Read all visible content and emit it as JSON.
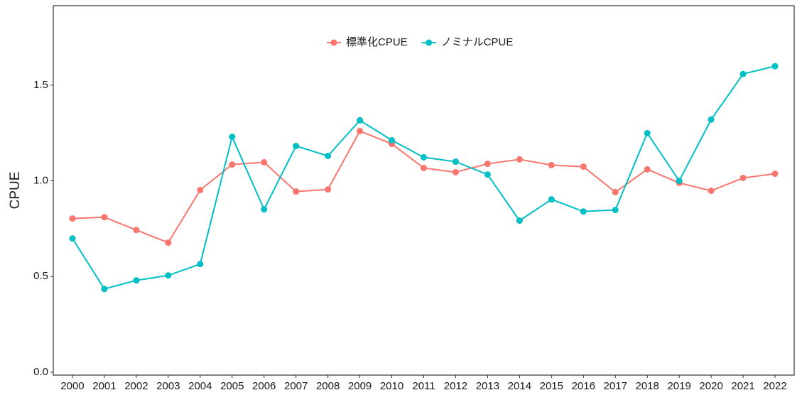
{
  "chart_data": {
    "type": "line",
    "y_label": "CPUE",
    "categories": [
      "2000",
      "2001",
      "2002",
      "2003",
      "2004",
      "2005",
      "2006",
      "2007",
      "2008",
      "2009",
      "2010",
      "2011",
      "2012",
      "2013",
      "2014",
      "2015",
      "2016",
      "2017",
      "2018",
      "2019",
      "2020",
      "2021",
      "2022"
    ],
    "series": [
      {
        "name": "標準化CPUE",
        "color": "#F8766D",
        "values": [
          0.803,
          0.81,
          0.743,
          0.677,
          0.952,
          1.085,
          1.097,
          0.944,
          0.955,
          1.26,
          1.193,
          1.067,
          1.045,
          1.089,
          1.112,
          1.082,
          1.074,
          0.941,
          1.06,
          0.989,
          0.948,
          1.015,
          1.037
        ]
      },
      {
        "name": "ノミナルCPUE",
        "color": "#00BFC4",
        "values": [
          0.699,
          0.435,
          0.48,
          0.506,
          0.565,
          1.23,
          0.851,
          1.182,
          1.13,
          1.316,
          1.212,
          1.123,
          1.1,
          1.033,
          0.792,
          0.903,
          0.84,
          0.848,
          1.249,
          1.0,
          1.32,
          1.558,
          1.599
        ]
      }
    ],
    "ylim": [
      -0.015,
      1.915
    ],
    "yticks": [
      {
        "value": 0,
        "label": "0.0"
      },
      0.5,
      {
        "value": 1,
        "label": "1.0"
      },
      1.5
    ],
    "legend": "top"
  }
}
